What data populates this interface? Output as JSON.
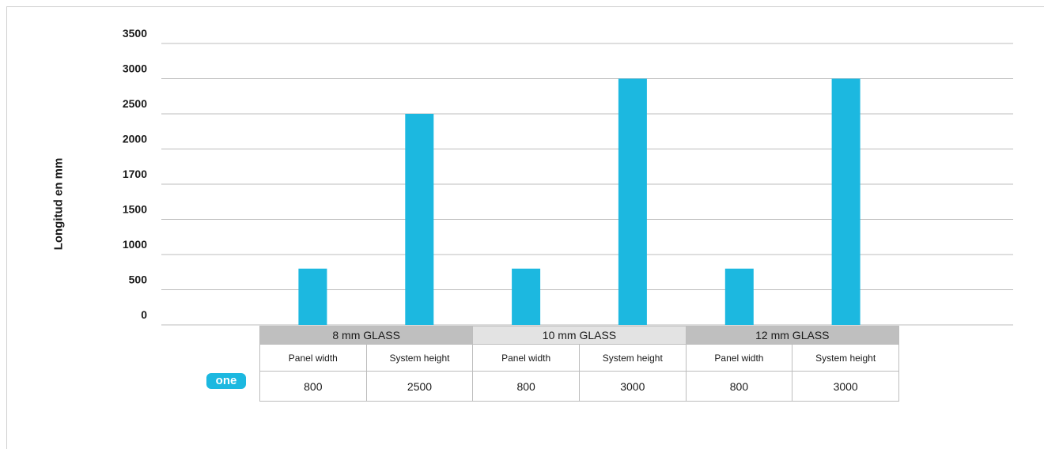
{
  "chart_data": {
    "type": "bar",
    "ylabel": "Longitud en mm",
    "y_tick_labels": [
      "0",
      "500",
      "1000",
      "1500",
      "1700",
      "2000",
      "2500",
      "3000",
      "3500"
    ],
    "categories": [
      "Panel width",
      "System height",
      "Panel width",
      "System height",
      "Panel width",
      "System height"
    ],
    "groups": [
      {
        "name": "8 mm GLASS",
        "metrics": [
          "Panel width",
          "System height"
        ],
        "values": [
          800,
          2500
        ]
      },
      {
        "name": "10 mm GLASS",
        "metrics": [
          "Panel width",
          "System height"
        ],
        "values": [
          800,
          3000
        ]
      },
      {
        "name": "12 mm GLASS",
        "metrics": [
          "Panel width",
          "System height"
        ],
        "values": [
          800,
          3000
        ]
      }
    ],
    "bar_color": "#1cb8e0",
    "grid": true
  },
  "logo": {
    "text": "one"
  },
  "table": {
    "values": [
      "800",
      "2500",
      "800",
      "3000",
      "800",
      "3000"
    ]
  }
}
